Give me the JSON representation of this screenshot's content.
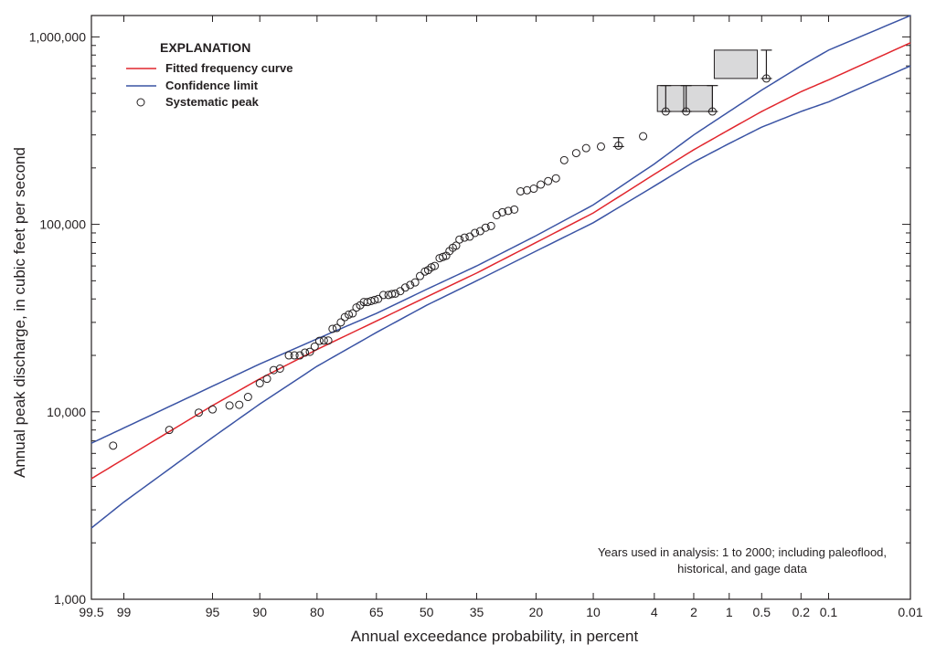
{
  "chart_data": {
    "type": "scatter",
    "title": "",
    "xlabel": "Annual exceedance probability, in percent",
    "ylabel": "Annual peak discharge, in cubic feet per second",
    "x_scale": "normal-probability (reversed, exceedance)",
    "y_scale": "log",
    "xlim": [
      99.5,
      0.01
    ],
    "ylim": [
      1000,
      1300000
    ],
    "x_ticks": [
      {
        "value": 99.5,
        "label": "99.5"
      },
      {
        "value": 99,
        "label": "99"
      },
      {
        "value": 95,
        "label": "95"
      },
      {
        "value": 90,
        "label": "90"
      },
      {
        "value": 80,
        "label": "80"
      },
      {
        "value": 65,
        "label": "65"
      },
      {
        "value": 50,
        "label": "50"
      },
      {
        "value": 35,
        "label": "35"
      },
      {
        "value": 20,
        "label": "20"
      },
      {
        "value": 10,
        "label": "10"
      },
      {
        "value": 4,
        "label": "4"
      },
      {
        "value": 2,
        "label": "2"
      },
      {
        "value": 1,
        "label": "1"
      },
      {
        "value": 0.5,
        "label": "0.5"
      },
      {
        "value": 0.2,
        "label": "0.2"
      },
      {
        "value": 0.1,
        "label": "0.1"
      },
      {
        "value": 0.01,
        "label": "0.01"
      }
    ],
    "y_ticks": [
      {
        "value": 1000,
        "label": "1,000"
      },
      {
        "value": 10000,
        "label": "10,000"
      },
      {
        "value": 100000,
        "label": "100,000"
      },
      {
        "value": 1000000,
        "label": "1,000,000"
      }
    ],
    "legend": {
      "title": "EXPLANATION",
      "position": "top-left",
      "items": [
        {
          "label": "Fitted frequency curve",
          "kind": "line",
          "color": "#e1262d"
        },
        {
          "label": "Confidence limit",
          "kind": "line",
          "color": "#3a53a4"
        },
        {
          "label": "Systematic peak",
          "kind": "marker"
        }
      ]
    },
    "note": [
      "Years used in analysis: 1 to 2000; including paleoflood,",
      "historical, and gage data"
    ],
    "series": [
      {
        "name": "Fitted frequency curve",
        "color": "#e1262d",
        "points": [
          [
            99.5,
            4400
          ],
          [
            99,
            5600
          ],
          [
            95,
            10800
          ],
          [
            90,
            15000
          ],
          [
            80,
            21500
          ],
          [
            65,
            30500
          ],
          [
            50,
            41000
          ],
          [
            35,
            55000
          ],
          [
            20,
            80000
          ],
          [
            10,
            115000
          ],
          [
            4,
            185000
          ],
          [
            2,
            250000
          ],
          [
            1,
            320000
          ],
          [
            0.5,
            400000
          ],
          [
            0.2,
            510000
          ],
          [
            0.1,
            590000
          ],
          [
            0.01,
            930000
          ]
        ]
      },
      {
        "name": "Confidence limit (upper)",
        "color": "#3a53a4",
        "points": [
          [
            99.5,
            6800
          ],
          [
            99,
            8200
          ],
          [
            95,
            13700
          ],
          [
            90,
            18000
          ],
          [
            80,
            24500
          ],
          [
            65,
            33500
          ],
          [
            50,
            45000
          ],
          [
            35,
            60000
          ],
          [
            20,
            87000
          ],
          [
            10,
            127000
          ],
          [
            4,
            210000
          ],
          [
            2,
            300000
          ],
          [
            1,
            400000
          ],
          [
            0.5,
            520000
          ],
          [
            0.2,
            700000
          ],
          [
            0.1,
            850000
          ],
          [
            0.01,
            1300000
          ]
        ]
      },
      {
        "name": "Confidence limit (lower)",
        "color": "#3a53a4",
        "points": [
          [
            99.5,
            2400
          ],
          [
            99,
            3300
          ],
          [
            95,
            7300
          ],
          [
            90,
            11000
          ],
          [
            80,
            17500
          ],
          [
            65,
            26500
          ],
          [
            50,
            37000
          ],
          [
            35,
            50000
          ],
          [
            20,
            72000
          ],
          [
            10,
            102000
          ],
          [
            4,
            160000
          ],
          [
            2,
            215000
          ],
          [
            1,
            270000
          ],
          [
            0.5,
            330000
          ],
          [
            0.2,
            400000
          ],
          [
            0.1,
            450000
          ],
          [
            0.01,
            700000
          ]
        ]
      },
      {
        "name": "Systematic peak",
        "kind": "scatter",
        "points": [
          [
            99.2,
            6600
          ],
          [
            97.6,
            8000
          ],
          [
            96,
            9900
          ],
          [
            95,
            10300
          ],
          [
            93.5,
            10800
          ],
          [
            92.5,
            10900
          ],
          [
            91.5,
            12000
          ],
          [
            90,
            14200
          ],
          [
            89,
            15000
          ],
          [
            88,
            16700
          ],
          [
            87,
            17000
          ],
          [
            85.5,
            20000
          ],
          [
            84.5,
            20000
          ],
          [
            83.5,
            20000
          ],
          [
            82.5,
            20700
          ],
          [
            81.5,
            20900
          ],
          [
            80.5,
            22300
          ],
          [
            79.5,
            23900
          ],
          [
            78.5,
            24000
          ],
          [
            77.5,
            24000
          ],
          [
            76.5,
            27700
          ],
          [
            75.5,
            28000
          ],
          [
            74.5,
            30000
          ],
          [
            73.5,
            32000
          ],
          [
            72.5,
            33000
          ],
          [
            71.5,
            33500
          ],
          [
            70.5,
            36000
          ],
          [
            69.5,
            37000
          ],
          [
            68.5,
            38500
          ],
          [
            67.5,
            38500
          ],
          [
            66.5,
            39000
          ],
          [
            65.5,
            39500
          ],
          [
            64.5,
            40000
          ],
          [
            63,
            42000
          ],
          [
            61.5,
            42000
          ],
          [
            60.5,
            42500
          ],
          [
            59.5,
            42700
          ],
          [
            58,
            44000
          ],
          [
            56.5,
            46000
          ],
          [
            55,
            47500
          ],
          [
            53.5,
            49000
          ],
          [
            52,
            53000
          ],
          [
            50.5,
            56000
          ],
          [
            49.5,
            57000
          ],
          [
            48.5,
            59000
          ],
          [
            47.5,
            60000
          ],
          [
            46,
            66000
          ],
          [
            45,
            67000
          ],
          [
            44,
            68000
          ],
          [
            43,
            72000
          ],
          [
            42,
            75000
          ],
          [
            41,
            77000
          ],
          [
            40,
            83000
          ],
          [
            38.5,
            85000
          ],
          [
            37,
            86000
          ],
          [
            35.5,
            90000
          ],
          [
            34,
            92000
          ],
          [
            32.5,
            96000
          ],
          [
            31,
            98000
          ],
          [
            29.5,
            112000
          ],
          [
            28,
            116000
          ],
          [
            26.5,
            118000
          ],
          [
            25,
            120000
          ],
          [
            23.5,
            150000
          ],
          [
            22,
            152000
          ],
          [
            20.5,
            155000
          ],
          [
            19,
            163000
          ],
          [
            17.5,
            170000
          ],
          [
            16,
            176000
          ],
          [
            14.5,
            220000
          ],
          [
            12.5,
            240000
          ],
          [
            11,
            255000
          ],
          [
            9,
            260000
          ],
          [
            7,
            263000
          ],
          [
            4.8,
            295000
          ],
          [
            3.3,
            400000
          ],
          [
            2.3,
            400000
          ],
          [
            1.4,
            400000
          ],
          [
            0.45,
            600000
          ]
        ]
      }
    ],
    "interval_boxes": [
      {
        "x_from": 3.8,
        "x_to": 2.4,
        "y_low": 400000,
        "y_high": 550000
      },
      {
        "x_from": 2.4,
        "x_to": 1.4,
        "y_low": 400000,
        "y_high": 550000
      },
      {
        "x_from": 1.35,
        "x_to": 0.55,
        "y_low": 600000,
        "y_high": 850000
      }
    ],
    "error_bars": [
      {
        "x": 7,
        "low": 260000,
        "high": 290000
      },
      {
        "x": 3.3,
        "low": 400000,
        "high": 550000
      },
      {
        "x": 2.3,
        "low": 400000,
        "high": 550000
      },
      {
        "x": 1.4,
        "low": 400000,
        "high": 550000
      },
      {
        "x": 0.45,
        "low": 600000,
        "high": 850000
      }
    ]
  }
}
